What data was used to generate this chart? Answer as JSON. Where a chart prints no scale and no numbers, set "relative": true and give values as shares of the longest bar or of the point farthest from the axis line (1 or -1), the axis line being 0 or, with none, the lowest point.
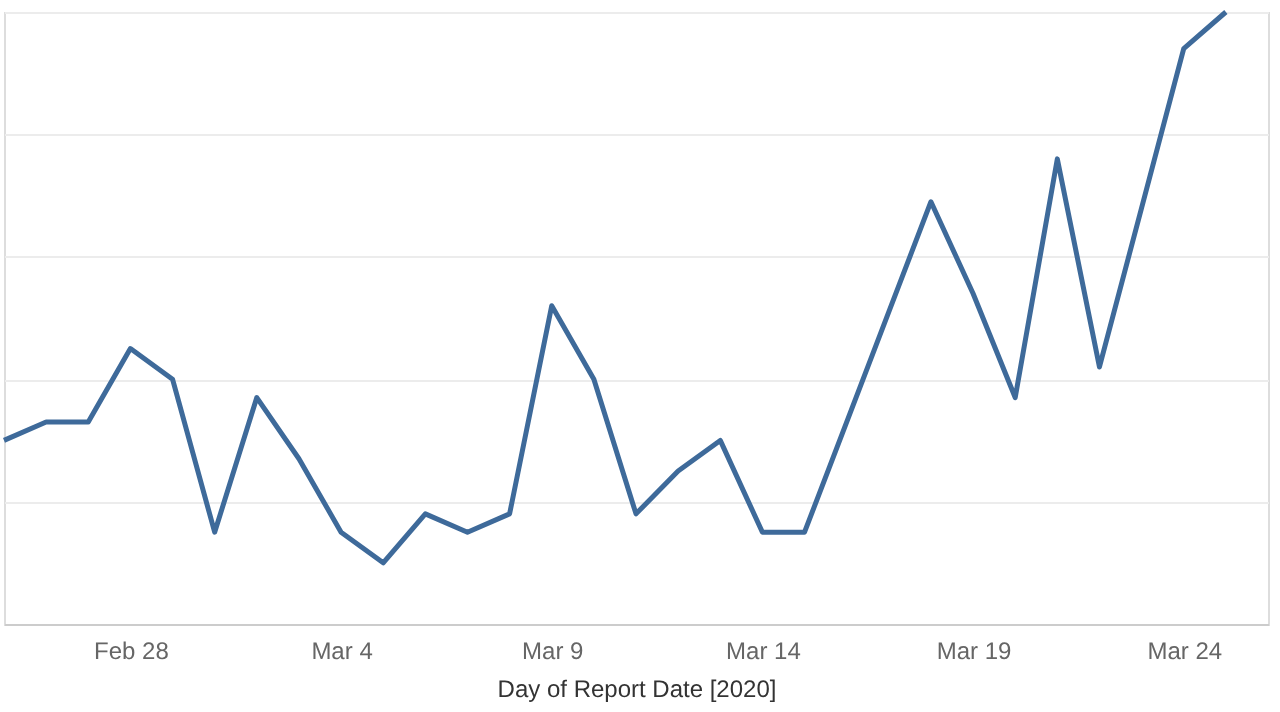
{
  "chart_data": {
    "type": "line",
    "xlabel": "Day of Report Date [2020]",
    "relative": true,
    "grid": "y",
    "marker": "none",
    "line_style": "solid",
    "x": [
      "2020-02-25",
      "2020-02-26",
      "2020-02-27",
      "2020-02-28",
      "2020-02-29",
      "2020-03-01",
      "2020-03-02",
      "2020-03-03",
      "2020-03-04",
      "2020-03-05",
      "2020-03-06",
      "2020-03-07",
      "2020-03-08",
      "2020-03-09",
      "2020-03-10",
      "2020-03-11",
      "2020-03-12",
      "2020-03-13",
      "2020-03-14",
      "2020-03-15",
      "2020-03-16",
      "2020-03-17",
      "2020-03-18",
      "2020-03-19",
      "2020-03-20",
      "2020-03-21",
      "2020-03-22",
      "2020-03-23",
      "2020-03-24",
      "2020-03-25"
    ],
    "xlim": [
      "2020-02-25",
      "2020-03-26"
    ],
    "xticks": [
      {
        "value": "2020-02-28",
        "label": "Feb 28"
      },
      {
        "value": "2020-03-04",
        "label": "Mar 4"
      },
      {
        "value": "2020-03-09",
        "label": "Mar 9"
      },
      {
        "value": "2020-03-14",
        "label": "Mar 14"
      },
      {
        "value": "2020-03-19",
        "label": "Mar 19"
      },
      {
        "value": "2020-03-24",
        "label": "Mar 24"
      }
    ],
    "series": [
      {
        "color": "#3e6a9a",
        "values": [
          0.3,
          0.33,
          0.33,
          0.45,
          0.4,
          0.15,
          0.37,
          0.27,
          0.15,
          0.1,
          0.18,
          0.15,
          0.18,
          0.52,
          0.4,
          0.18,
          0.25,
          0.3,
          0.15,
          0.15,
          0.33,
          0.51,
          0.69,
          0.54,
          0.37,
          0.76,
          0.42,
          0.68,
          0.94,
          1.0
        ]
      }
    ]
  }
}
